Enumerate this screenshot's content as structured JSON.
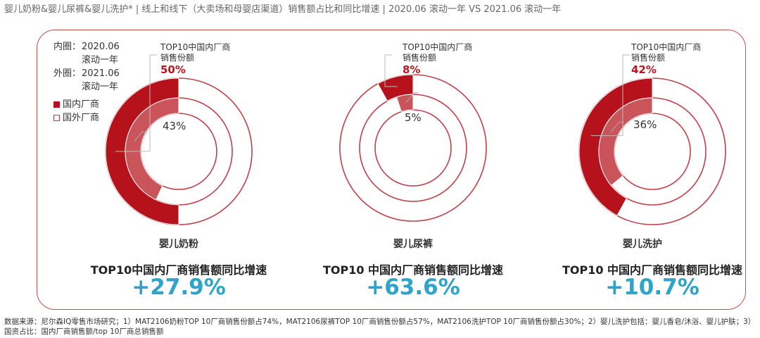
{
  "title": "婴儿奶粉&婴儿尿裤&婴儿洗护* | 线上和线下（大卖场和母婴店渠道）销售额占比和同比增速 | 2020.06 滚动一年 VS 2021.06 滚动一年",
  "legend": {
    "inner_key": "内圈：",
    "inner_val1": "2020.06",
    "inner_val2": "滚动一年",
    "outer_key": "外圈：",
    "outer_val1": "2021.06",
    "outer_val2": "滚动一年",
    "domestic": "国内厂商",
    "foreign": "国外厂商"
  },
  "colors": {
    "outer_domestic": "#b5121b",
    "inner_domestic": "#c9555a",
    "ring_outline": "#c0404a",
    "growth": "#2fa4c8",
    "frame": "#c0504d"
  },
  "chart_data": {
    "type": "pie",
    "subtype": "nested-donut",
    "series": [
      {
        "name": "国内厂商"
      },
      {
        "name": "国外厂商"
      }
    ],
    "panels": [
      {
        "category": "婴儿奶粉",
        "label_line1": "TOP10中国内厂商",
        "label_line2": "销售份额",
        "outer_pct_label": "50%",
        "inner_pct_label": "43%",
        "outer_domestic": 50,
        "inner_domestic": 43,
        "growth_label": "TOP10中国内厂商销售额同比增速",
        "growth_value": "+27.9%"
      },
      {
        "category": "婴儿尿裤",
        "label_line1": "TOP10中国内厂商",
        "label_line2": "销售份额",
        "outer_pct_label": "8%",
        "inner_pct_label": "5%",
        "outer_domestic": 8,
        "inner_domestic": 5,
        "growth_label": "TOP10 中国内厂商销售额同比增速",
        "growth_value": "+63.6%"
      },
      {
        "category": "婴儿洗护",
        "label_line1": "TOP10中国内厂商",
        "label_line2": "销售份额",
        "outer_pct_label": "42%",
        "inner_pct_label": "36%",
        "outer_domestic": 42,
        "inner_domestic": 36,
        "growth_label": "TOP10 中国内厂商销售额同比增速",
        "growth_value": "+10.7%"
      }
    ]
  },
  "footnote": "数据来源：尼尔森IQ零售市场研究；1）MAT2106奶粉TOP 10厂商销售份额占74%，MAT2106尿裤TOP 10厂商销售份额占57%，MAT2106洗护TOP 10厂商销售份额占30%；2）婴儿洗护包括：婴儿香皂/沐浴、婴儿护肤；3）国资占比：国内厂商销售额/top 10厂商总销售额"
}
